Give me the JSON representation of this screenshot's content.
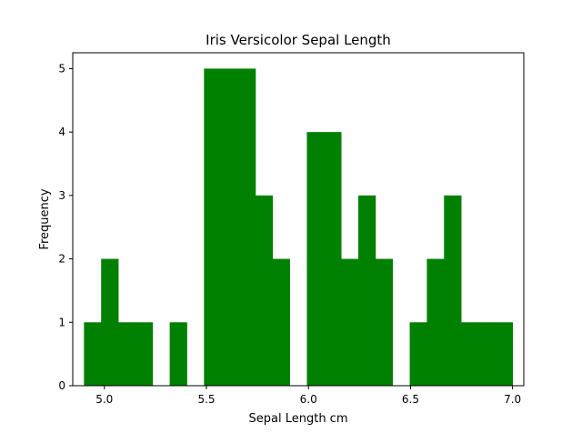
{
  "chart_data": {
    "type": "histogram",
    "title": "Iris Versicolor Sepal Length",
    "xlabel": "Sepal Length cm",
    "ylabel": "Frequency",
    "xlim": [
      4.845,
      7.055
    ],
    "ylim": [
      0,
      5.25
    ],
    "x_ticks": [
      "5.0",
      "5.5",
      "6.0",
      "6.5",
      "7.0"
    ],
    "y_ticks": [
      "0",
      "1",
      "2",
      "3",
      "4",
      "5"
    ],
    "bar_color": "#008000",
    "bin_width": 0.084,
    "bins": [
      {
        "start": 4.9,
        "value": 1
      },
      {
        "start": 4.984,
        "value": 2
      },
      {
        "start": 5.068,
        "value": 1
      },
      {
        "start": 5.152,
        "value": 1
      },
      {
        "start": 5.236,
        "value": 0
      },
      {
        "start": 5.32,
        "value": 1
      },
      {
        "start": 5.404,
        "value": 0
      },
      {
        "start": 5.488,
        "value": 5
      },
      {
        "start": 5.572,
        "value": 5
      },
      {
        "start": 5.656,
        "value": 5
      },
      {
        "start": 5.74,
        "value": 3
      },
      {
        "start": 5.824,
        "value": 2
      },
      {
        "start": 5.908,
        "value": 0
      },
      {
        "start": 5.992,
        "value": 4
      },
      {
        "start": 6.076,
        "value": 4
      },
      {
        "start": 6.16,
        "value": 2
      },
      {
        "start": 6.244,
        "value": 3
      },
      {
        "start": 6.328,
        "value": 2
      },
      {
        "start": 6.412,
        "value": 0
      },
      {
        "start": 6.496,
        "value": 1
      },
      {
        "start": 6.58,
        "value": 2
      },
      {
        "start": 6.664,
        "value": 3
      },
      {
        "start": 6.748,
        "value": 1
      },
      {
        "start": 6.832,
        "value": 1
      },
      {
        "start": 6.916,
        "value": 1
      }
    ],
    "grid": false,
    "legend": "none"
  }
}
